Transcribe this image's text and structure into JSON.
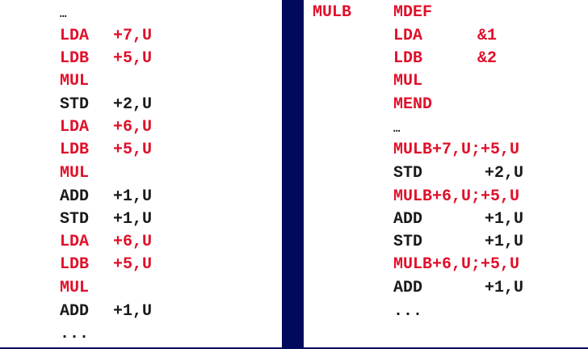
{
  "colors": {
    "background": "#000a5c",
    "panel": "#ffffff",
    "macro_highlight": "#e0102a",
    "normal_text": "#1a1a1a"
  },
  "left_listing": [
    {
      "mnemonic": "…",
      "operand": "",
      "highlight": false
    },
    {
      "mnemonic": "LDA",
      "operand": "+7,U",
      "highlight": true
    },
    {
      "mnemonic": "LDB",
      "operand": "+5,U",
      "highlight": true
    },
    {
      "mnemonic": "MUL",
      "operand": "",
      "highlight": true
    },
    {
      "mnemonic": "STD",
      "operand": "+2,U",
      "highlight": false
    },
    {
      "mnemonic": "LDA",
      "operand": "+6,U",
      "highlight": true
    },
    {
      "mnemonic": "LDB",
      "operand": "+5,U",
      "highlight": true
    },
    {
      "mnemonic": "MUL",
      "operand": "",
      "highlight": true
    },
    {
      "mnemonic": "ADD",
      "operand": "+1,U",
      "highlight": false
    },
    {
      "mnemonic": "STD",
      "operand": "+1,U",
      "highlight": false
    },
    {
      "mnemonic": "LDA",
      "operand": "+6,U",
      "highlight": true
    },
    {
      "mnemonic": "LDB",
      "operand": "+5,U",
      "highlight": true
    },
    {
      "mnemonic": "MUL",
      "operand": "",
      "highlight": true
    },
    {
      "mnemonic": "ADD",
      "operand": "+1,U",
      "highlight": false
    },
    {
      "mnemonic": "...",
      "operand": "",
      "highlight": false
    }
  ],
  "right_listing": {
    "macro_definition": [
      {
        "label": "MULB",
        "mnemonic": "MDEF",
        "operand": ""
      },
      {
        "label": "",
        "mnemonic": "LDA",
        "operand": "&1"
      },
      {
        "label": "",
        "mnemonic": "LDB",
        "operand": "&2"
      },
      {
        "label": "",
        "mnemonic": "MUL",
        "operand": ""
      },
      {
        "label": "",
        "mnemonic": "MEND",
        "operand": ""
      }
    ],
    "separator": "…",
    "expanded_code": [
      {
        "mnemonic": "MULB+7,U;+5,U",
        "operand": "",
        "highlight": true
      },
      {
        "mnemonic": "STD",
        "operand": "+2,U",
        "highlight": false
      },
      {
        "mnemonic": "MULB+6,U;+5,U",
        "operand": "",
        "highlight": true
      },
      {
        "mnemonic": "ADD",
        "operand": "+1,U",
        "highlight": false
      },
      {
        "mnemonic": "STD",
        "operand": "+1,U",
        "highlight": false
      },
      {
        "mnemonic": "MULB+6,U;+5,U",
        "operand": "",
        "highlight": true
      },
      {
        "mnemonic": "ADD",
        "operand": "+1,U",
        "highlight": false
      }
    ],
    "end": "..."
  }
}
